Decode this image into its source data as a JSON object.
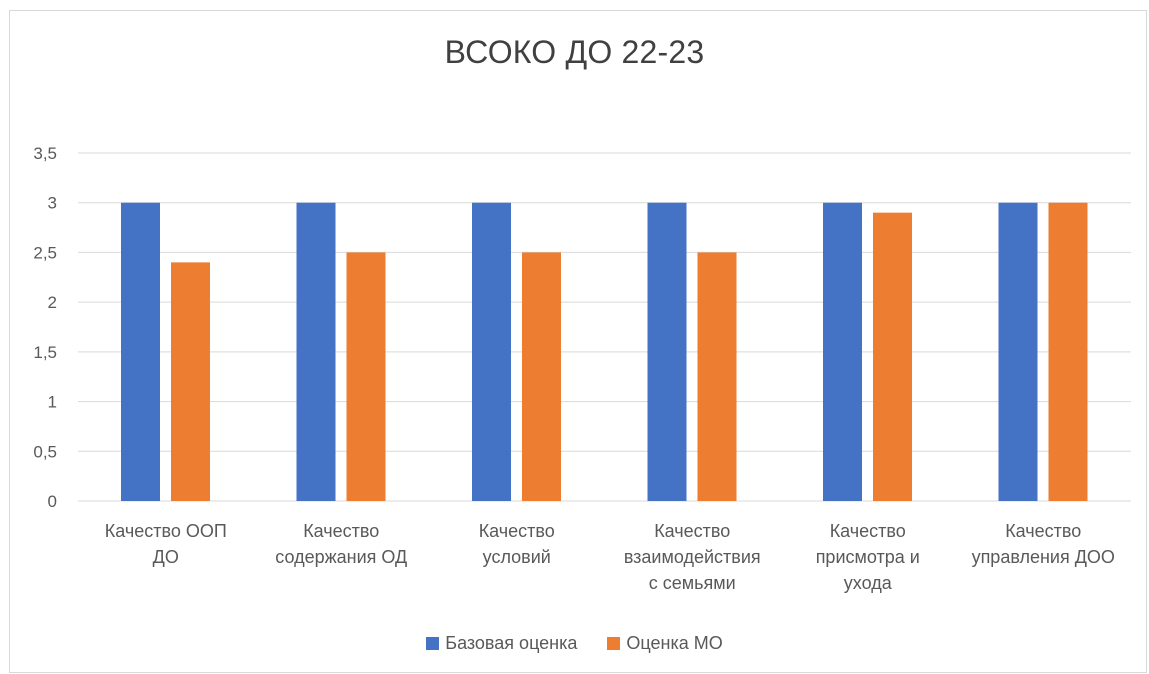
{
  "chart_data": {
    "type": "bar",
    "title": "ВСОКО ДО 22-23",
    "categories": [
      [
        "Качество ООП",
        "ДО"
      ],
      [
        "Качество",
        "содержания ОД"
      ],
      [
        "Качество",
        "условий"
      ],
      [
        "Качество",
        "взаимодействия",
        "с семьями"
      ],
      [
        "Качество",
        "присмотра и",
        "ухода"
      ],
      [
        "Качество",
        "управления ДОО"
      ]
    ],
    "series": [
      {
        "name": "Базовая оценка",
        "color": "#4472c4",
        "values": [
          3,
          3,
          3,
          3,
          3,
          3
        ]
      },
      {
        "name": "Оценка МО",
        "color": "#ed7d31",
        "values": [
          2.4,
          2.5,
          2.5,
          2.5,
          2.9,
          3
        ]
      }
    ],
    "ylim": [
      0,
      3.5
    ],
    "yticks": [
      0,
      0.5,
      1,
      1.5,
      2,
      2.5,
      3,
      3.5
    ],
    "ytick_labels": [
      "0",
      "0,5",
      "1",
      "1,5",
      "2",
      "2,5",
      "3",
      "3,5"
    ],
    "grid": true,
    "legend_position": "bottom"
  }
}
